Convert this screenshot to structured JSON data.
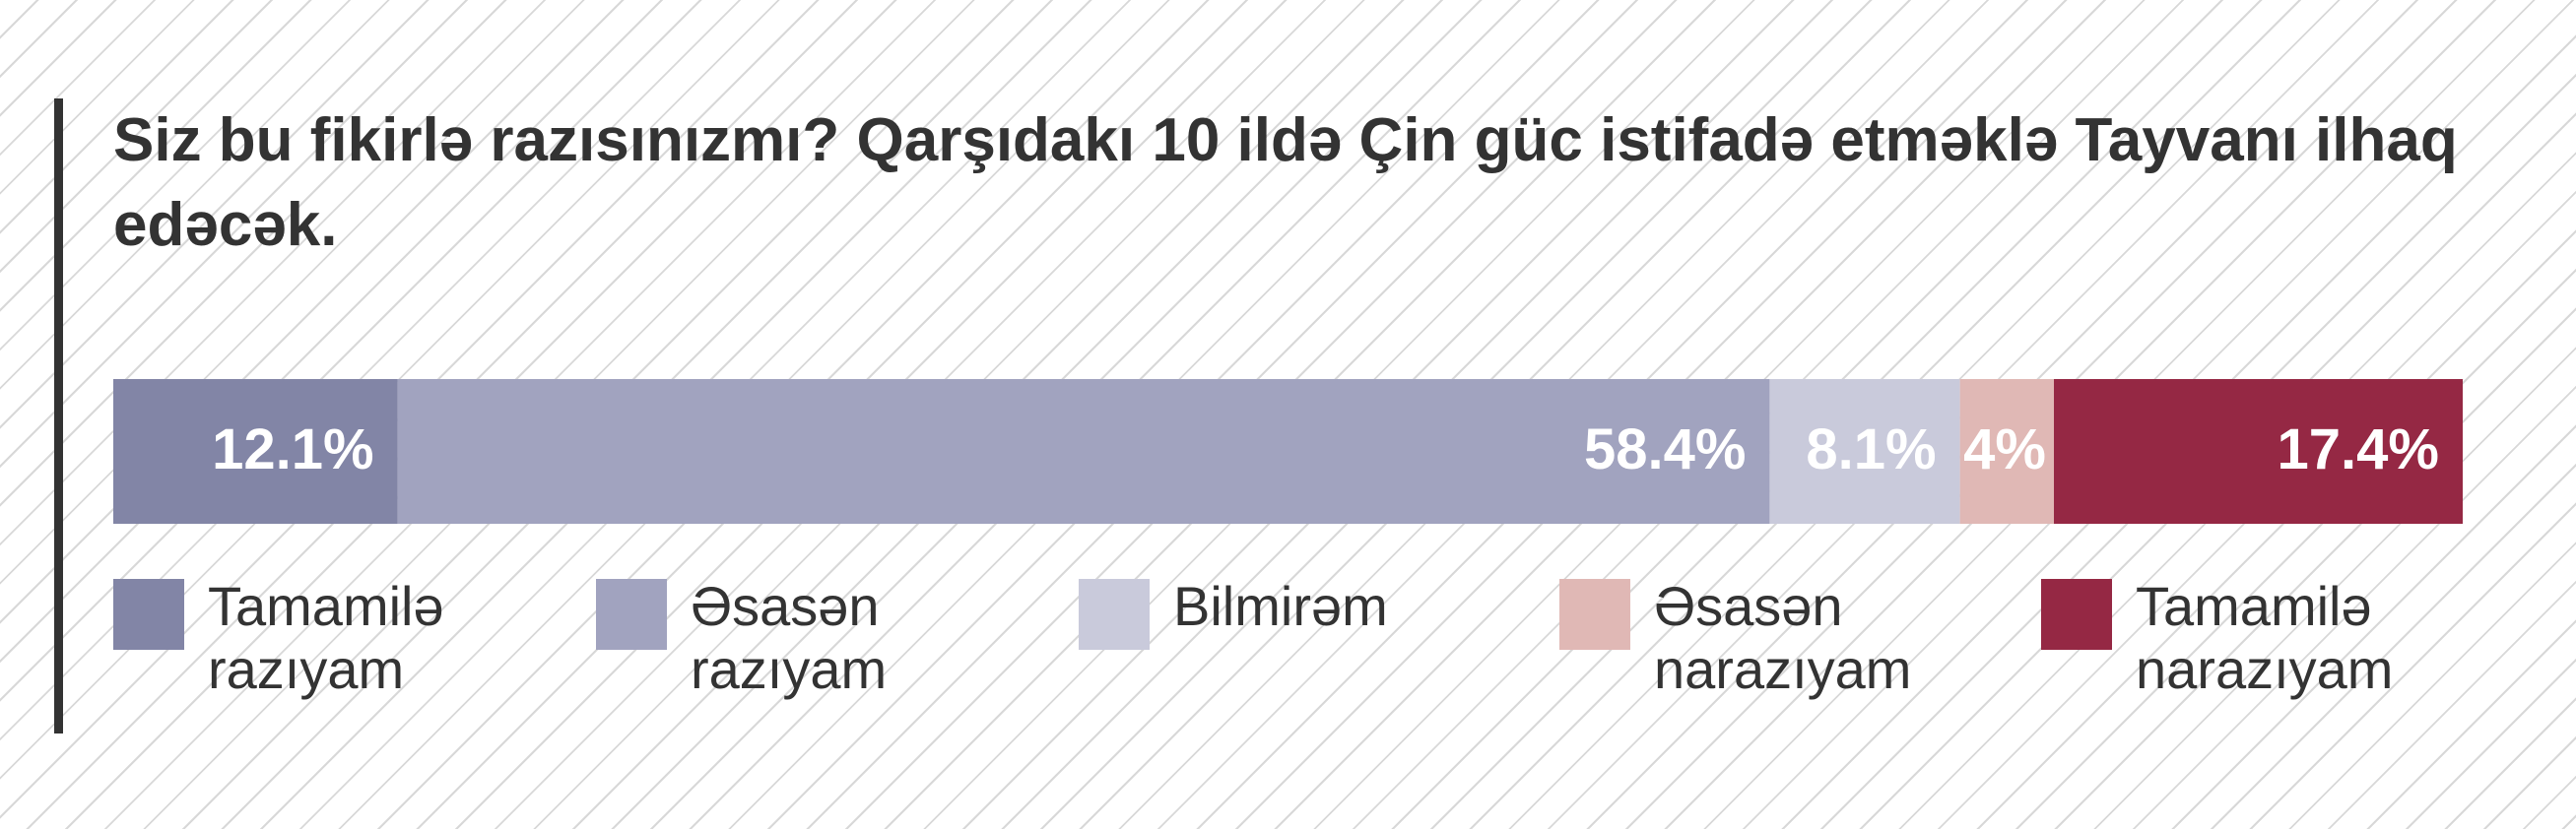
{
  "chart_data": {
    "type": "bar",
    "orientation": "horizontal",
    "stacked": true,
    "title": "Siz bu fikirlə razısınızmı? Qarşıdakı 10 ildə Çin güc istifadə etməklə Tayvanı ilhaq edəcək.",
    "xlim": [
      0,
      100
    ],
    "series": [
      {
        "name": "Tamamilə razıyam",
        "color": "#8285a6",
        "values": [
          12.1
        ],
        "value_labels": [
          "12.1%"
        ]
      },
      {
        "name": "Əsasən razıyam",
        "color": "#a1a3bf",
        "values": [
          58.4
        ],
        "value_labels": [
          "58.4%"
        ]
      },
      {
        "name": "Bilmirəm",
        "color": "#c9cadb",
        "values": [
          8.1
        ],
        "value_labels": [
          "8.1%"
        ]
      },
      {
        "name": "Əsasən narazıyam",
        "color": "#e0b8b5",
        "values": [
          4
        ],
        "value_labels": [
          "4%"
        ]
      },
      {
        "name": "Tamamilə narazıyam",
        "color": "#952844",
        "values": [
          17.4
        ],
        "value_labels": [
          "17.4%"
        ]
      }
    ]
  }
}
